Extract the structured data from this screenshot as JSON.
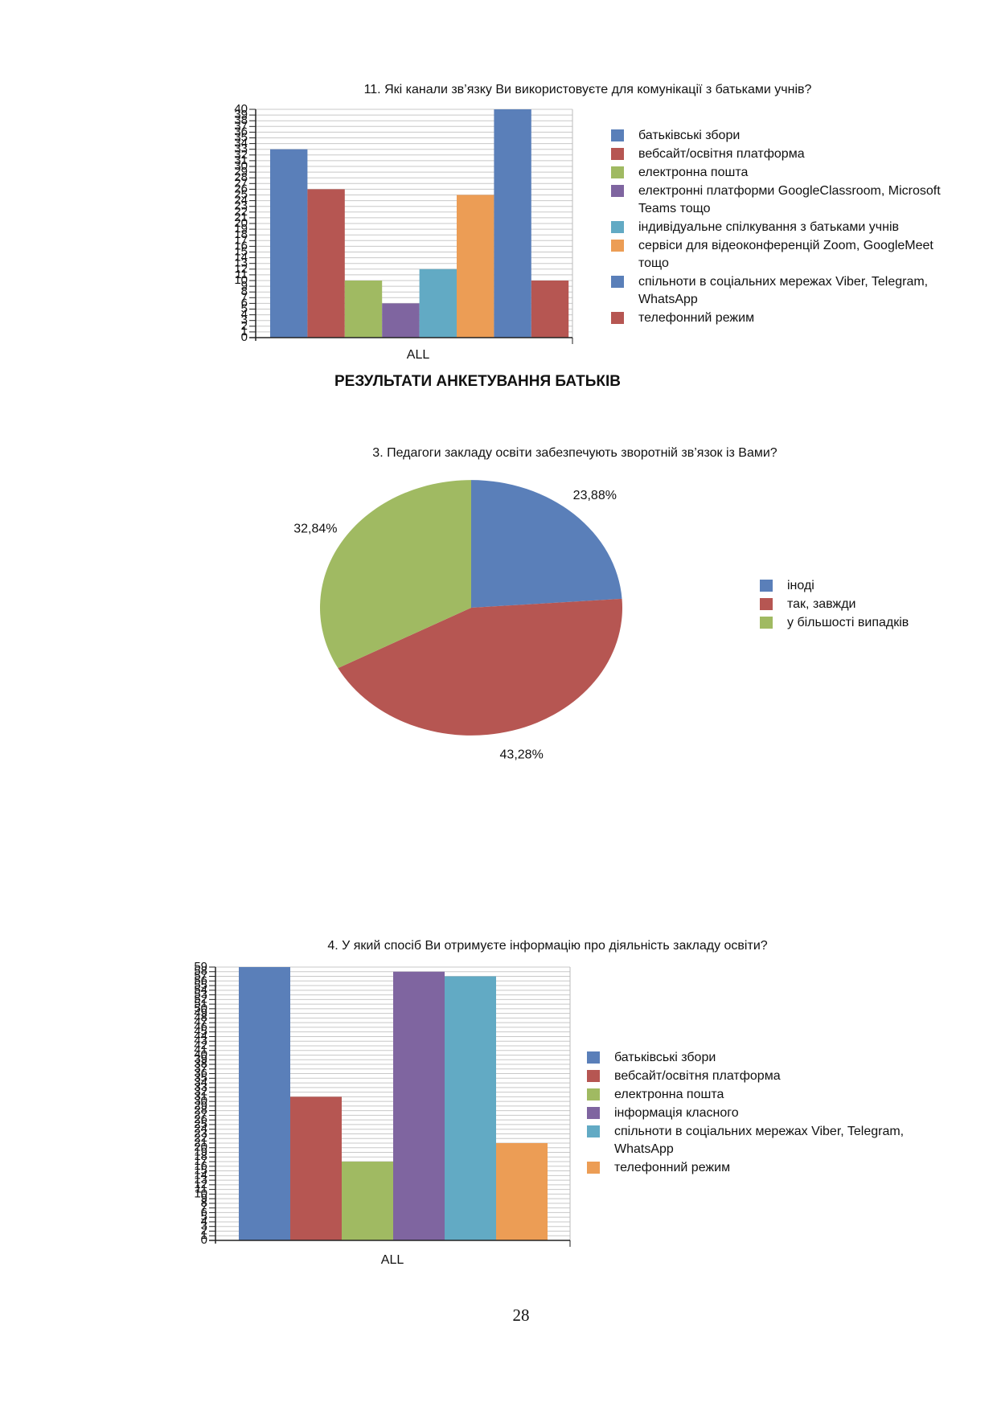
{
  "chart_data": [
    {
      "type": "bar",
      "title": "11. Які канали зв’язку Ви використовуєте для комунікації з батьками учнів?",
      "categories": [
        "ALL"
      ],
      "ylim": [
        0,
        40
      ],
      "yticks": [
        0,
        1,
        2,
        3,
        4,
        5,
        6,
        7,
        8,
        9,
        10,
        11,
        12,
        13,
        14,
        15,
        16,
        17,
        18,
        19,
        20,
        21,
        22,
        23,
        24,
        25,
        26,
        27,
        28,
        29,
        30,
        31,
        32,
        33,
        34,
        35,
        36,
        37,
        38,
        39,
        40
      ],
      "grid": true,
      "series": [
        {
          "name": "батьківські збори",
          "color": "#5a7fb9",
          "values": [
            33
          ]
        },
        {
          "name": "вебсайт/освітня платформа",
          "color": "#b65652",
          "values": [
            26
          ]
        },
        {
          "name": "електронна пошта",
          "color": "#a0ba62",
          "values": [
            10
          ]
        },
        {
          "name": "електронні платформи GoogleClassroom, Microsoft Teams тощо",
          "color": "#7f65a0",
          "values": [
            6
          ]
        },
        {
          "name": "індивідуальне спілкування з батьками учнів",
          "color": "#62aac4",
          "values": [
            12
          ]
        },
        {
          "name": "сервіси для відеоконференцій Zoom, GoogleMeet тощо",
          "color": "#ec9d55",
          "values": [
            25
          ]
        },
        {
          "name": "спільноти в соціальних мережах Viber, Telegram, WhatsApp",
          "color": "#5a7fb9",
          "values": [
            40
          ]
        },
        {
          "name": "телефонний режим",
          "color": "#b65652",
          "values": [
            10
          ]
        }
      ]
    },
    {
      "type": "pie",
      "title": "3. Педагоги закладу освіти забезпечують зворотній зв’язок із Вами?",
      "categories": [
        "іноді",
        "так, завжди",
        "у більшості випадків"
      ],
      "values": [
        23.88,
        43.28,
        32.84
      ],
      "value_labels": [
        "23,88%",
        "43,28%",
        "32,84%"
      ],
      "colors": [
        "#5a7fb9",
        "#b65652",
        "#a0ba62"
      ]
    },
    {
      "type": "bar",
      "title": "4. У який спосіб Ви отримуєте інформацію про діяльність закладу освіти?",
      "categories": [
        "ALL"
      ],
      "ylim": [
        0,
        59
      ],
      "yticks": [
        0,
        1,
        2,
        3,
        4,
        5,
        6,
        7,
        8,
        9,
        10,
        11,
        12,
        13,
        14,
        15,
        16,
        17,
        18,
        19,
        20,
        21,
        22,
        23,
        24,
        25,
        26,
        27,
        28,
        29,
        30,
        31,
        32,
        33,
        34,
        35,
        36,
        37,
        38,
        39,
        40,
        41,
        42,
        43,
        44,
        45,
        46,
        47,
        48,
        49,
        50,
        51,
        52,
        53,
        54,
        55,
        56,
        57,
        58,
        59
      ],
      "grid": true,
      "series": [
        {
          "name": "батьківські збори",
          "color": "#5a7fb9",
          "values": [
            59
          ]
        },
        {
          "name": "вебсайт/освітня платформа",
          "color": "#b65652",
          "values": [
            31
          ]
        },
        {
          "name": "електронна пошта",
          "color": "#a0ba62",
          "values": [
            17
          ]
        },
        {
          "name": "інформація класного",
          "color": "#7f65a0",
          "values": [
            58
          ]
        },
        {
          "name": "спільноти в соціальних мережах Viber, Telegram, WhatsApp",
          "color": "#62aac4",
          "values": [
            57
          ]
        },
        {
          "name": "телефонний режим",
          "color": "#ec9d55",
          "values": [
            21
          ]
        }
      ]
    }
  ],
  "heading": "РЕЗУЛЬТАТИ АНКЕТУВАННЯ БАТЬКІВ",
  "page_number": "28"
}
